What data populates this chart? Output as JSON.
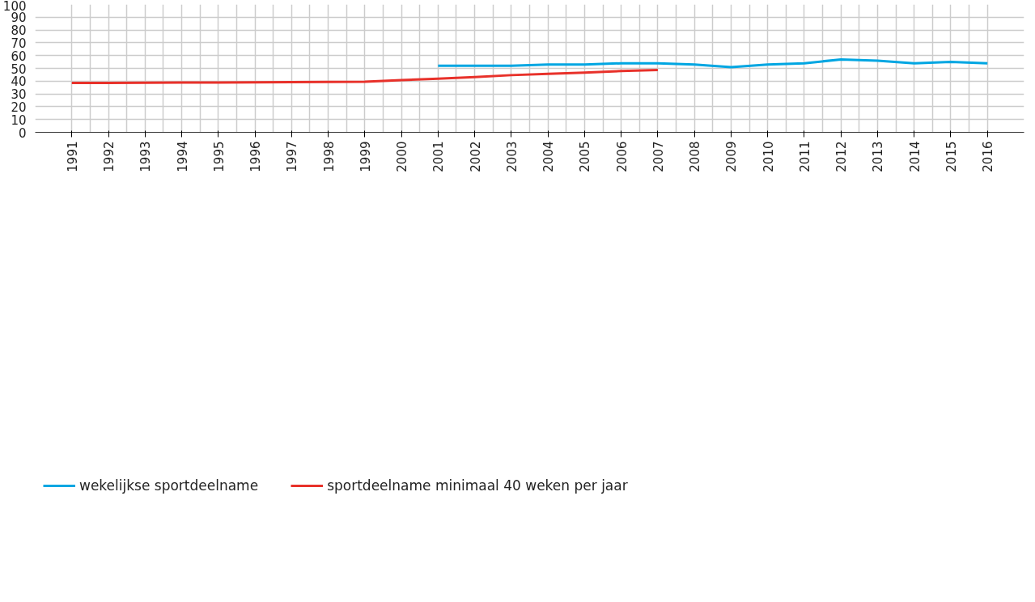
{
  "chart_data": {
    "type": "line",
    "x": [
      1991,
      1992,
      1993,
      1994,
      1995,
      1996,
      1997,
      1998,
      1999,
      2000,
      2001,
      2002,
      2003,
      2004,
      2005,
      2006,
      2007,
      2008,
      2009,
      2010,
      2011,
      2012,
      2013,
      2014,
      2015,
      2016
    ],
    "series": [
      {
        "name": "wekelijkse sportdeelname",
        "color": "#00a6e2",
        "values": [
          null,
          null,
          null,
          null,
          null,
          null,
          null,
          null,
          null,
          null,
          52,
          52,
          52,
          53,
          53,
          54,
          54,
          53,
          51,
          53,
          54,
          57,
          56,
          54,
          55,
          54
        ]
      },
      {
        "name": "sportdeelname minimaal 40 weken per jaar",
        "color": "#e8312a",
        "values": [
          38.6,
          38.6,
          38.8,
          38.9,
          39.0,
          39.1,
          39.2,
          39.4,
          39.6,
          40.8,
          42.0,
          43.2,
          44.7,
          45.7,
          46.7,
          47.9,
          48.7,
          null,
          null,
          null,
          null,
          null,
          null,
          null,
          null,
          null
        ]
      }
    ],
    "xlim": [
      1990,
      2017
    ],
    "xticks": [
      1991,
      1992,
      1993,
      1994,
      1995,
      1996,
      1997,
      1998,
      1999,
      2000,
      2001,
      2002,
      2003,
      2004,
      2005,
      2006,
      2007,
      2008,
      2009,
      2010,
      2011,
      2012,
      2013,
      2014,
      2015,
      2016
    ],
    "ylim": [
      0,
      100
    ],
    "yticks": [
      0,
      10,
      20,
      30,
      40,
      50,
      60,
      70,
      80,
      90,
      100
    ],
    "grid": true,
    "legend": "bottom",
    "marker": "none",
    "line_style": "solid"
  }
}
